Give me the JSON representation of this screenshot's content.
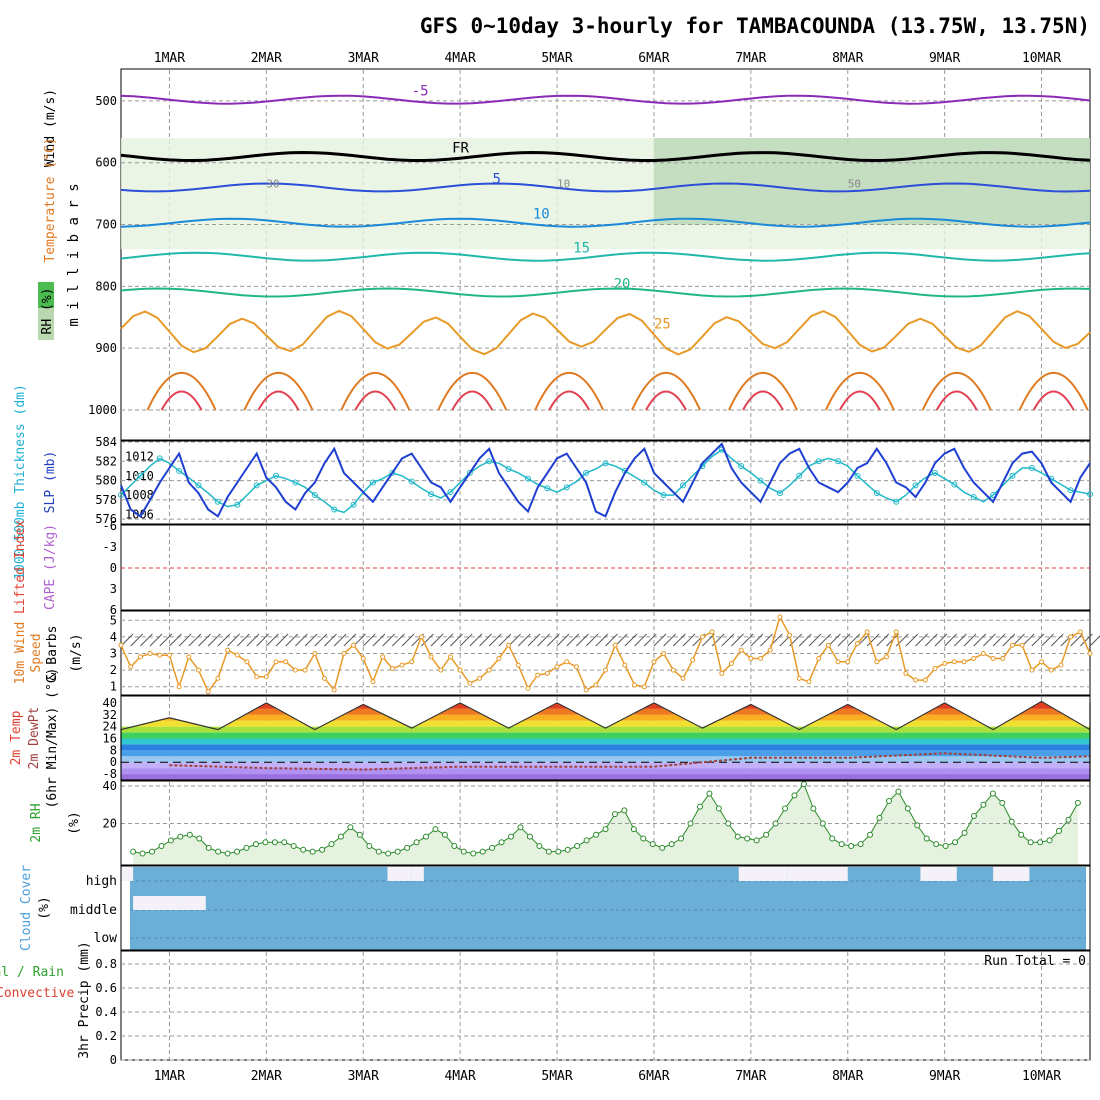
{
  "title": "GFS 0~10day 3-hourly for TAMBACOUNDA (13.75W, 13.75N)",
  "colors": {
    "frame": "#000000",
    "grid": "#9a9a9a",
    "slp": "#1e3fd0",
    "thickness": "#20b8c8",
    "wind": "#e89a28",
    "temp_line": "#333333",
    "dewpoint": "#a04040",
    "rh": "#2a8a2a",
    "rh_fill": "#e6f2e0",
    "cloud": "#6baed6",
    "cloud_gap": "#f4f2f8",
    "li_zero": "#e04040",
    "fr_line": "#000000",
    "label_orange": "#e07a20",
    "label_red": "#e04030",
    "label_purple": "#b060d0",
    "label_cyan": "#20b0d0",
    "label_blue": "#2040c0",
    "label_green": "#30a030",
    "label_lightblue": "#4aa0e0"
  },
  "chart_data": [
    {
      "type": "line",
      "panel": "pressure_cross_section",
      "x_axis": {
        "labels": [
          "1MAR",
          "2MAR",
          "3MAR",
          "4MAR",
          "5MAR",
          "6MAR",
          "7MAR",
          "8MAR",
          "9MAR",
          "10MAR"
        ],
        "start_hour": -12,
        "end_hour": 228
      },
      "y_axis": {
        "ylabel": "m i l l i b a r s",
        "ticks": [
          "500",
          "600",
          "700",
          "800",
          "900",
          "1000"
        ],
        "range": [
          450,
          1000
        ]
      },
      "left_labels": {
        "wind": "Wind (m/s)",
        "temperature": "Temperature (°C)",
        "rh": "RH (%)"
      },
      "contours": [
        {
          "label": "-5",
          "level_mb": 498
        },
        {
          "label": "FR",
          "level_mb": 590
        },
        {
          "label": "5",
          "level_mb": 640
        },
        {
          "label": "10",
          "level_mb": 697
        },
        {
          "label": "15",
          "level_mb": 752
        },
        {
          "label": "20",
          "level_mb": 810
        },
        {
          "label": "25",
          "level_mb": 875
        }
      ],
      "rh_labels": [
        "30",
        "10",
        "50"
      ]
    },
    {
      "type": "line",
      "panel": "slp_thickness",
      "ylabel_left": "1000-500mb Thickness (dm)",
      "ylabel_right": "SLP (mb)",
      "left_ticks": [
        "576",
        "578",
        "580",
        "582",
        "584"
      ],
      "right_ticks": [
        "1006",
        "1008",
        "1010",
        "1012"
      ],
      "slp": {
        "name": "SLP",
        "range": [
          1005,
          1013.5
        ],
        "values": [
          1009,
          1006.5,
          1005.8,
          1007.5,
          1009.3,
          1010.8,
          1012.3,
          1009.3,
          1008.2,
          1006.5,
          1005.8,
          1007.8,
          1009.3,
          1010.8,
          1012.3,
          1009.8,
          1008.8,
          1007.3,
          1006.5,
          1008.2,
          1009.3,
          1011.3,
          1012.8,
          1010.3,
          1009.3,
          1008.3,
          1007.3,
          1008.8,
          1010.3,
          1011.8,
          1012.3,
          1010.8,
          1009.3,
          1008.8,
          1007.3,
          1008.8,
          1010.3,
          1011.8,
          1012.8,
          1010.3,
          1008.8,
          1007.3,
          1006.3,
          1008.8,
          1010.3,
          1011.8,
          1012.3,
          1010.8,
          1009.3,
          1006.3,
          1005.8,
          1008.3,
          1010.3,
          1011.8,
          1012.8,
          1010.3,
          1009.3,
          1008.3,
          1007.3,
          1009.3,
          1011.3,
          1012.3,
          1013.3,
          1010.8,
          1009.3,
          1008.3,
          1007.3,
          1009.3,
          1011.3,
          1012.3,
          1012.8,
          1010.8,
          1009.3,
          1008.8,
          1008.3,
          1009.3,
          1010.8,
          1011.3,
          1012.8,
          1011.3,
          1009.3,
          1008.8,
          1007.8,
          1009.3,
          1011.3,
          1012.3,
          1012.8,
          1010.8,
          1009.3,
          1008.3,
          1007.3,
          1009.3,
          1011.3,
          1012.3,
          1012.5,
          1011.3,
          1009.3,
          1008.3,
          1007.3,
          1009.8,
          1011.3
        ]
      },
      "thickness": {
        "name": "Thickness",
        "range": [
          575.5,
          584
        ],
        "values": [
          578.5,
          579.5,
          580.5,
          581.5,
          582.3,
          581.8,
          581,
          580.3,
          579.5,
          578.7,
          577.8,
          577.3,
          577.5,
          578.5,
          579.5,
          580,
          580.5,
          580.2,
          579.8,
          579.3,
          578.5,
          577.8,
          577,
          576.7,
          577.5,
          578.8,
          579.8,
          580.2,
          580.8,
          580.5,
          579.9,
          579.2,
          578.6,
          578.2,
          578.8,
          579.8,
          580.8,
          581.5,
          582,
          581.8,
          581.2,
          580.8,
          580.2,
          579.6,
          579.2,
          578.8,
          579.3,
          579.9,
          580.8,
          581.2,
          581.8,
          581.5,
          581,
          580.4,
          579.8,
          579,
          578.5,
          578.5,
          579.5,
          580.5,
          581.5,
          582.5,
          583.2,
          582.3,
          581.5,
          580.8,
          580,
          579.2,
          578.7,
          579.5,
          580.5,
          581.5,
          582,
          582.3,
          582,
          581.5,
          580.5,
          579.6,
          578.7,
          578.2,
          577.8,
          578.5,
          579.5,
          580.3,
          580.8,
          580.2,
          579.6,
          578.8,
          578.3,
          577.8,
          578.5,
          579.5,
          580.5,
          581.3,
          581.3,
          580.8,
          580.2,
          579.6,
          579,
          578.8,
          578.6
        ]
      }
    },
    {
      "type": "line",
      "panel": "lifted_index_cape",
      "ylabel_left": "Lifted Index",
      "ylabel_right": "CAPE (J/kg)",
      "ticks": [
        "-6",
        "-3",
        "0",
        "3",
        "6"
      ],
      "range": [
        -6,
        6
      ],
      "li_zero_line": 0
    },
    {
      "type": "line",
      "panel": "wind_10m",
      "ylabel": "10m Wind Speed (m/s) & Barbs",
      "ylabel_parts": [
        "10m Wind",
        "Speed",
        "& Barbs",
        "(m/s)"
      ],
      "ticks": [
        "1",
        "2",
        "3",
        "4",
        "5"
      ],
      "range": [
        0.5,
        5.5
      ],
      "values": [
        3.5,
        2.2,
        2.8,
        3,
        2.9,
        2.9,
        1,
        2.8,
        2,
        0.7,
        1.5,
        3.2,
        2.9,
        2.5,
        1.6,
        1.6,
        2.5,
        2.5,
        2,
        2,
        3,
        1.5,
        0.8,
        3,
        3.5,
        2.7,
        1.3,
        2.8,
        2.1,
        2.3,
        2.5,
        4,
        2.8,
        2,
        2.8,
        2,
        1.2,
        1.5,
        2,
        2.7,
        3.5,
        2.3,
        0.9,
        1.7,
        1.8,
        2.2,
        2.5,
        2.2,
        0.8,
        1.1,
        2,
        3.5,
        2.3,
        1.1,
        1,
        2.5,
        3,
        2,
        1.5,
        2.6,
        4,
        4.3,
        1.8,
        2.4,
        3.2,
        2.7,
        2.7,
        3.2,
        5.2,
        4.1,
        1.5,
        1.3,
        2.7,
        3.5,
        2.5,
        2.5,
        3.6,
        4.3,
        2.5,
        2.8,
        4.3,
        1.8,
        1.4,
        1.4,
        2.1,
        2.4,
        2.5,
        2.5,
        2.7,
        3,
        2.7,
        2.7,
        3.5,
        3.5,
        2,
        2.5,
        2,
        2.3,
        4,
        4.3,
        3
      ]
    },
    {
      "type": "area",
      "panel": "temperature_dewpoint",
      "ylabel_parts": [
        "2m Temp",
        "2m DewPt",
        "(6hr Min/Max) (°C)"
      ],
      "ticks": [
        "-8",
        "0",
        "8",
        "16",
        "24",
        "32",
        "40"
      ],
      "range": [
        -12,
        44
      ],
      "temp_max": [
        30,
        40,
        39,
        40,
        40,
        40,
        39,
        39,
        40,
        41,
        40
      ],
      "temp_min": [
        22,
        22,
        22,
        23,
        23,
        23,
        23,
        22,
        22,
        22,
        22
      ],
      "dewpoint": [
        -2,
        -4,
        -5,
        -3,
        -3,
        -3,
        3,
        3,
        6,
        3,
        4
      ]
    },
    {
      "type": "area",
      "panel": "relative_humidity",
      "ylabel": "2m RH (%)",
      "ylabel_parts": [
        "2m RH",
        "(%)"
      ],
      "ticks": [
        "20",
        "40"
      ],
      "range": [
        0,
        40
      ],
      "values": [
        5,
        4,
        5,
        8,
        11,
        13,
        14,
        12,
        7,
        5,
        4,
        5,
        7,
        9,
        10,
        10,
        10,
        8,
        6,
        5,
        6,
        9,
        13,
        18,
        14,
        8,
        5,
        4,
        5,
        7,
        10,
        13,
        17,
        14,
        8,
        5,
        4,
        5,
        7,
        10,
        13,
        18,
        13,
        8,
        5,
        5,
        6,
        8,
        11,
        14,
        17,
        25,
        27,
        17,
        12,
        9,
        7,
        9,
        12,
        20,
        29,
        36,
        28,
        20,
        13,
        12,
        11,
        14,
        20,
        28,
        35,
        41,
        28,
        20,
        12,
        9,
        8,
        9,
        14,
        23,
        32,
        37,
        28,
        19,
        12,
        9,
        8,
        10,
        15,
        24,
        30,
        36,
        31,
        21,
        14,
        10,
        10,
        11,
        16,
        22,
        31
      ]
    },
    {
      "type": "bar",
      "panel": "cloud_cover",
      "ylabel": "Cloud Cover (%)",
      "layers": [
        "high",
        "middle",
        "low"
      ],
      "ylabel_parts": [
        "Cloud Cover",
        "(%)"
      ],
      "gaps": [
        {
          "from_hour": -12,
          "to_hour": -9,
          "layer": "high"
        },
        {
          "from_hour": -9,
          "to_hour": 3,
          "layer": "middle"
        },
        {
          "from_hour": 3,
          "to_hour": 9,
          "layer": "middle"
        },
        {
          "from_hour": 54,
          "to_hour": 60,
          "layer": "high"
        },
        {
          "from_hour": 60,
          "to_hour": 63,
          "layer": "high"
        },
        {
          "from_hour": 141,
          "to_hour": 153,
          "layer": "high"
        },
        {
          "from_hour": 153,
          "to_hour": 168,
          "layer": "high"
        },
        {
          "from_hour": 186,
          "to_hour": 195,
          "layer": "high"
        },
        {
          "from_hour": 204,
          "to_hour": 213,
          "layer": "high"
        }
      ]
    },
    {
      "type": "bar",
      "panel": "precipitation",
      "ylabel_parts": [
        "Total / Rain",
        "Convective",
        "3hr Precip (mm)"
      ],
      "ticks": [
        "0",
        "0.2",
        "0.4",
        "0.6",
        "0.8"
      ],
      "range": [
        0,
        0.9
      ],
      "values": [],
      "run_total_text": "Run Total = 0"
    }
  ]
}
